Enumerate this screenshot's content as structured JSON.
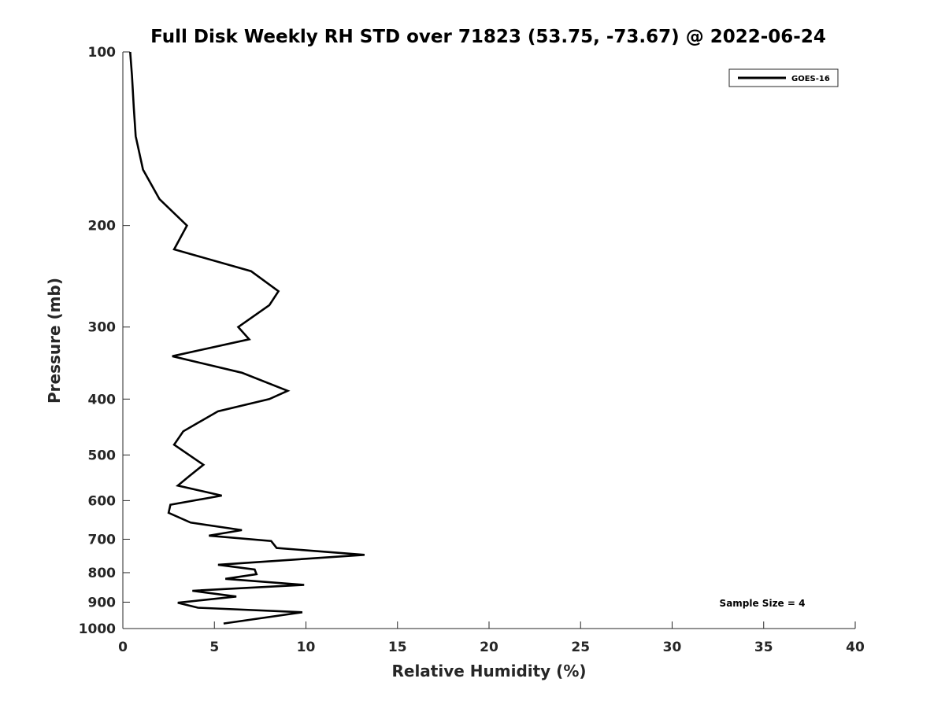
{
  "chart_data": {
    "type": "line",
    "title": "Full Disk Weekly RH STD over 71823 (53.75, -73.67) @ 2022-06-24",
    "xlabel": "Relative Humidity (%)",
    "ylabel": "Pressure (mb)",
    "xlim": [
      0,
      40
    ],
    "ylim": [
      100,
      1000
    ],
    "y_scale": "log",
    "y_reversed": true,
    "x_ticks": [
      "0",
      "5",
      "10",
      "15",
      "20",
      "25",
      "30",
      "35",
      "40"
    ],
    "y_ticks": [
      "100",
      "200",
      "300",
      "400",
      "500",
      "600",
      "700",
      "800",
      "900",
      "1000"
    ],
    "grid": false,
    "legend_position": "top-right",
    "series": [
      {
        "name": "GOES-16",
        "color": "#000000",
        "x": [
          0.4,
          0.5,
          0.6,
          0.7,
          1.1,
          2.0,
          3.5,
          2.8,
          7.0,
          8.5,
          8.0,
          6.3,
          6.9,
          2.7,
          6.5,
          9.0,
          8.0,
          5.2,
          3.3,
          2.8,
          4.4,
          3.6,
          3.0,
          5.4,
          2.6,
          2.5,
          3.7,
          6.5,
          4.7,
          8.1,
          8.4,
          13.2,
          5.2,
          7.2,
          7.3,
          5.6,
          9.9,
          3.8,
          6.2,
          3.0,
          4.1,
          9.8,
          5.5
        ],
        "y": [
          100,
          110,
          125,
          140,
          160,
          180,
          200,
          220,
          240,
          260,
          275,
          300,
          315,
          337,
          360,
          387,
          400,
          420,
          455,
          480,
          520,
          545,
          565,
          588,
          610,
          630,
          655,
          675,
          690,
          705,
          725,
          745,
          775,
          790,
          805,
          820,
          840,
          860,
          880,
          902,
          920,
          937,
          980
        ]
      }
    ],
    "annotations": [
      "Sample Size = 4"
    ]
  }
}
